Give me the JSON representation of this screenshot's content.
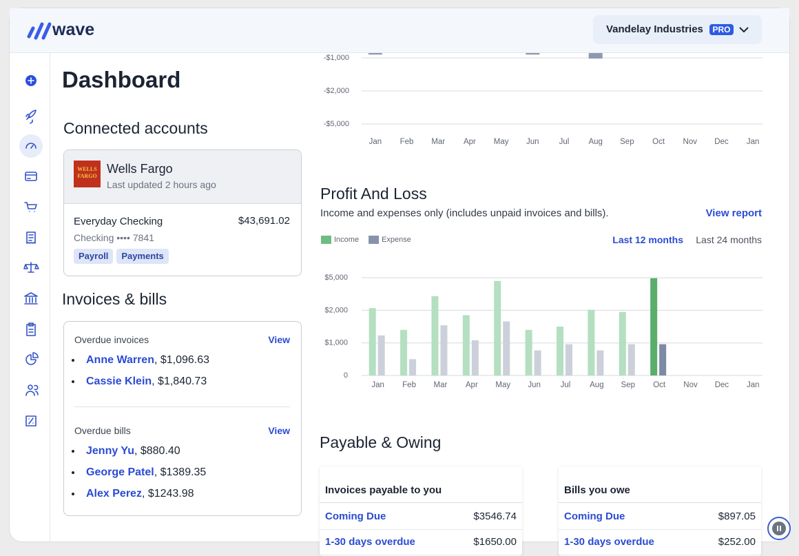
{
  "header": {
    "logo": "wave",
    "company": "Vandelay Industries",
    "badge": "PRO"
  },
  "page_title": "Dashboard",
  "connected_accounts": {
    "title": "Connected accounts",
    "bank": "Wells Fargo",
    "bank_logo": [
      "WELLS",
      "FARGO"
    ],
    "updated": "Last updated 2 hours ago",
    "account": {
      "name": "Everyday Checking",
      "balance": "$43,691.02",
      "detail": "Checking •••• 7841",
      "tags": [
        "Payroll",
        "Payments"
      ]
    }
  },
  "invoices_bills": {
    "title": "Invoices & bills",
    "groups": [
      {
        "title": "Overdue invoices",
        "action": "View",
        "items": [
          {
            "name": "Anne Warren",
            "amount": ", $1,096.63"
          },
          {
            "name": "Cassie Klein",
            "amount": ", $1,840.73"
          }
        ]
      },
      {
        "title": "Overdue bills",
        "action": "View",
        "items": [
          {
            "name": "Jenny Yu",
            "amount": ", $880.40"
          },
          {
            "name": "George Patel",
            "amount": ", $1389.35"
          },
          {
            "name": "Alex Perez",
            "amount": ", $1243.98"
          }
        ]
      }
    ]
  },
  "chart_data": [
    {
      "type": "bar",
      "categories": [
        "Jan",
        "Feb",
        "Mar",
        "Apr",
        "May",
        "Jun",
        "Jul",
        "Aug",
        "Sep",
        "Oct",
        "Nov",
        "Dec",
        "Jan"
      ],
      "values": [
        -900,
        null,
        null,
        null,
        null,
        -900,
        null,
        -1020,
        null,
        null,
        null,
        null,
        null
      ],
      "color": "#8e99b1",
      "ylim": [
        0,
        -5000
      ],
      "yticks": [
        {
          "value": -1000,
          "label": "-$1,000"
        },
        {
          "value": -2000,
          "label": "-$2,000"
        },
        {
          "value": -5000,
          "label": "-$5,000"
        }
      ],
      "grid": true
    },
    {
      "type": "bar",
      "title": "Profit And Loss",
      "subtitle": "Income and expenses only (includes unpaid invoices and bills).",
      "categories": [
        "Jan",
        "Feb",
        "Mar",
        "Apr",
        "May",
        "Jun",
        "Jul",
        "Aug",
        "Sep",
        "Oct",
        "Nov",
        "Dec",
        "Jan"
      ],
      "series": [
        {
          "name": "Income",
          "color": "#6dbd82",
          "colors": [
            "#b4dfc0",
            "#b4dfc0",
            "#b4dfc0",
            "#b4dfc0",
            "#b4dfc0",
            "#b4dfc0",
            "#b4dfc0",
            "#b4dfc0",
            "#b4dfc0",
            "#5aae6c",
            "#b4dfc0",
            "#b4dfc0",
            "#b4dfc0"
          ],
          "values": [
            2200,
            1400,
            3300,
            1850,
            4700,
            1400,
            1500,
            2050,
            1950,
            4950,
            null,
            null,
            null
          ]
        },
        {
          "name": "Expense",
          "color": "#8793ab",
          "colors": [
            "#cbd0da",
            "#cbd0da",
            "#cbd0da",
            "#cbd0da",
            "#cbd0da",
            "#cbd0da",
            "#cbd0da",
            "#cbd0da",
            "#cbd0da",
            "#7d8aa6",
            "#cbd0da",
            "#cbd0da",
            "#cbd0da"
          ],
          "values": [
            1230,
            500,
            1540,
            1080,
            1660,
            770,
            960,
            770,
            960,
            960,
            null,
            null,
            null
          ]
        }
      ],
      "ylim": [
        0,
        5000
      ],
      "yticks": [
        0,
        {
          "value": 1000,
          "label": "$1,000"
        },
        {
          "value": 2000,
          "label": "$2,000"
        },
        {
          "value": 5000,
          "label": "$5,000"
        }
      ],
      "grid": true,
      "legend": "top-left"
    }
  ],
  "profit_and_loss": {
    "link": "View report",
    "ranges": [
      "Last 12 months",
      "Last 24 months"
    ]
  },
  "payable_owing": {
    "title": "Payable & Owing",
    "tables": [
      {
        "title": "Invoices payable to you",
        "rows": [
          {
            "label": "Coming Due",
            "amount": "$3546.74"
          },
          {
            "label": "1-30 days overdue",
            "amount": "$1650.00"
          }
        ]
      },
      {
        "title": "Bills you owe",
        "rows": [
          {
            "label": "Coming Due",
            "amount": "$897.05"
          },
          {
            "label": "1-30 days overdue",
            "amount": "$252.00"
          }
        ]
      }
    ]
  }
}
